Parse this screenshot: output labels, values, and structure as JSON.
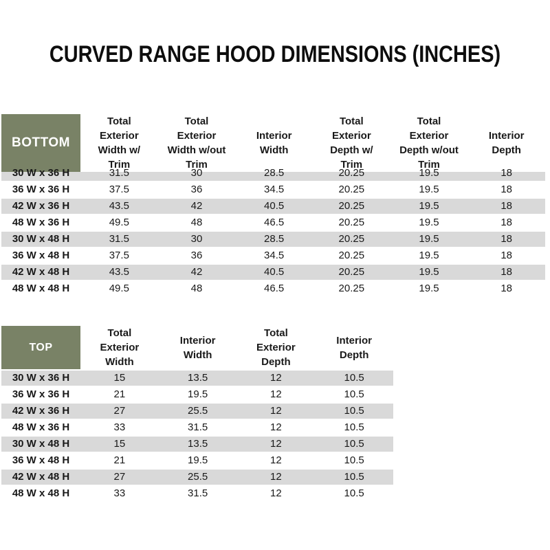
{
  "title": "CURVED RANGE HOOD DIMENSIONS (INCHES)",
  "colors": {
    "section_header_bg": "#798266",
    "section_header_text": "#ffffff",
    "row_stripe": "#d9d9d9",
    "body_text": "#191919"
  },
  "bottom": {
    "label": "BOTTOM",
    "columns": [
      "Total Exterior Width w/ Trim",
      "Total Exterior Width w/out Trim",
      "Interior Width",
      "Total Exterior Depth w/ Trim",
      "Total Exterior Depth w/out Trim",
      "Interior Depth"
    ],
    "rows": [
      {
        "label": "30 W x 36 H",
        "values": [
          "31.5",
          "30",
          "28.5",
          "20.25",
          "19.5",
          "18"
        ]
      },
      {
        "label": "36 W x 36 H",
        "values": [
          "37.5",
          "36",
          "34.5",
          "20.25",
          "19.5",
          "18"
        ]
      },
      {
        "label": "42 W x 36 H",
        "values": [
          "43.5",
          "42",
          "40.5",
          "20.25",
          "19.5",
          "18"
        ]
      },
      {
        "label": "48 W x 36 H",
        "values": [
          "49.5",
          "48",
          "46.5",
          "20.25",
          "19.5",
          "18"
        ]
      },
      {
        "label": "30 W x 48 H",
        "values": [
          "31.5",
          "30",
          "28.5",
          "20.25",
          "19.5",
          "18"
        ]
      },
      {
        "label": "36 W x 48 H",
        "values": [
          "37.5",
          "36",
          "34.5",
          "20.25",
          "19.5",
          "18"
        ]
      },
      {
        "label": "42 W x 48 H",
        "values": [
          "43.5",
          "42",
          "40.5",
          "20.25",
          "19.5",
          "18"
        ]
      },
      {
        "label": "48 W x 48 H",
        "values": [
          "49.5",
          "48",
          "46.5",
          "20.25",
          "19.5",
          "18"
        ]
      }
    ]
  },
  "top": {
    "label": "TOP",
    "columns": [
      "Total Exterior Width",
      "Interior Width",
      "Total Exterior Depth",
      "Interior Depth"
    ],
    "rows": [
      {
        "label": "30 W x 36 H",
        "values": [
          "15",
          "13.5",
          "12",
          "10.5"
        ]
      },
      {
        "label": "36 W x 36 H",
        "values": [
          "21",
          "19.5",
          "12",
          "10.5"
        ]
      },
      {
        "label": "42 W x 36 H",
        "values": [
          "27",
          "25.5",
          "12",
          "10.5"
        ]
      },
      {
        "label": "48 W x 36 H",
        "values": [
          "33",
          "31.5",
          "12",
          "10.5"
        ]
      },
      {
        "label": "30 W x 48 H",
        "values": [
          "15",
          "13.5",
          "12",
          "10.5"
        ]
      },
      {
        "label": "36 W x 48 H",
        "values": [
          "21",
          "19.5",
          "12",
          "10.5"
        ]
      },
      {
        "label": "42 W x 48 H",
        "values": [
          "27",
          "25.5",
          "12",
          "10.5"
        ]
      },
      {
        "label": "48 W x 48 H",
        "values": [
          "33",
          "31.5",
          "12",
          "10.5"
        ]
      }
    ]
  }
}
